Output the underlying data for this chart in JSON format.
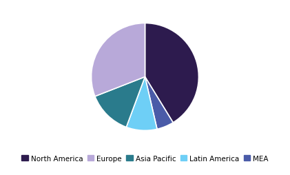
{
  "labels": [
    "North America",
    "Europe",
    "Asia Pacific",
    "Latin America",
    "MEA"
  ],
  "values": [
    40,
    30,
    13,
    9,
    5
  ],
  "colors": [
    "#2d1b4e",
    "#b8a9d9",
    "#2a7b8c",
    "#6ecff6",
    "#4a5ba8"
  ],
  "order": [
    "North America",
    "MEA",
    "Latin America",
    "Asia Pacific",
    "Europe"
  ],
  "order_values": [
    40,
    5,
    9,
    13,
    30
  ],
  "order_colors": [
    "#2d1b4e",
    "#4a5ba8",
    "#6ecff6",
    "#2a7b8c",
    "#b8a9d9"
  ],
  "startangle": 90,
  "legend_fontsize": 7.5,
  "background_color": "#ffffff"
}
